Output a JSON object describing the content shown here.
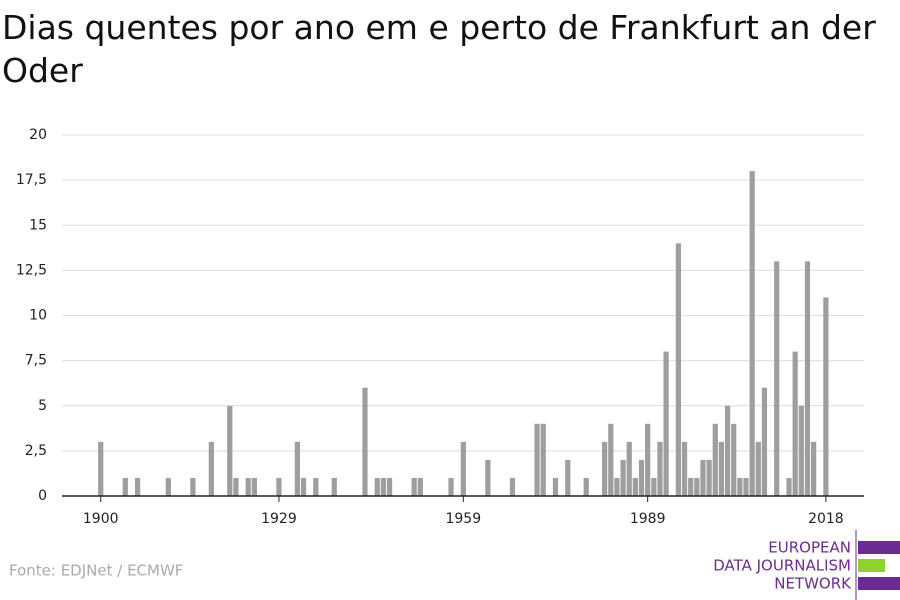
{
  "chart_data": {
    "type": "bar",
    "title": "Dias quentes por ano em e perto de Frankfurt an der Oder",
    "source": "Fonte: EDJNet / ECMWF",
    "logo": [
      "EUROPEAN",
      "DATA JOURNALISM",
      "NETWORK"
    ],
    "color": "#9e9e9e",
    "x": [
      1900,
      1901,
      1902,
      1903,
      1904,
      1905,
      1906,
      1907,
      1908,
      1909,
      1910,
      1911,
      1912,
      1913,
      1914,
      1915,
      1916,
      1917,
      1918,
      1919,
      1920,
      1921,
      1922,
      1923,
      1924,
      1925,
      1926,
      1927,
      1928,
      1929,
      1930,
      1931,
      1932,
      1933,
      1934,
      1935,
      1936,
      1937,
      1938,
      1939,
      1940,
      1941,
      1942,
      1943,
      1944,
      1945,
      1946,
      1947,
      1948,
      1949,
      1950,
      1951,
      1952,
      1953,
      1954,
      1955,
      1956,
      1957,
      1958,
      1959,
      1960,
      1961,
      1962,
      1963,
      1964,
      1965,
      1966,
      1967,
      1968,
      1969,
      1970,
      1971,
      1972,
      1973,
      1974,
      1975,
      1976,
      1977,
      1978,
      1979,
      1980,
      1981,
      1982,
      1983,
      1984,
      1985,
      1986,
      1987,
      1988,
      1989,
      1990,
      1991,
      1992,
      1993,
      1994,
      1995,
      1996,
      1997,
      1998,
      1999,
      2000,
      2001,
      2002,
      2003,
      2004,
      2005,
      2006,
      2007,
      2008,
      2009,
      2010,
      2011,
      2012,
      2013,
      2014,
      2015,
      2016,
      2017,
      2018
    ],
    "values": [
      3,
      0,
      0,
      0,
      1,
      0,
      1,
      0,
      0,
      0,
      0,
      1,
      0,
      0,
      0,
      1,
      0,
      0,
      3,
      0,
      0,
      5,
      1,
      0,
      1,
      1,
      0,
      0,
      0,
      1,
      0,
      0,
      3,
      1,
      0,
      1,
      0,
      0,
      1,
      0,
      0,
      0,
      0,
      6,
      0,
      1,
      1,
      1,
      0,
      0,
      0,
      1,
      1,
      0,
      0,
      0,
      0,
      1,
      0,
      3,
      0,
      0,
      0,
      2,
      0,
      0,
      0,
      1,
      0,
      0,
      0,
      4,
      4,
      0,
      1,
      0,
      2,
      0,
      0,
      1,
      0,
      0,
      3,
      4,
      1,
      2,
      3,
      1,
      2,
      4,
      1,
      3,
      8,
      0,
      14,
      3,
      1,
      1,
      2,
      2,
      4,
      3,
      5,
      4,
      1,
      1,
      18,
      3,
      6,
      0,
      13,
      0,
      1,
      8,
      5,
      13,
      3,
      0,
      11
    ],
    "xlim": [
      1893.7,
      2024.2
    ],
    "xticks": [
      1900,
      1929,
      1959,
      1989,
      2018
    ],
    "ylim": [
      0,
      20
    ],
    "yticks": [
      0,
      {
        "value": 2.5,
        "label": "2,5"
      },
      5,
      {
        "value": 7.5,
        "label": "7,5"
      },
      10,
      {
        "value": 12.5,
        "label": "12,5"
      },
      15,
      {
        "value": 17.5,
        "label": "17,5"
      },
      20
    ],
    "grid": true
  }
}
